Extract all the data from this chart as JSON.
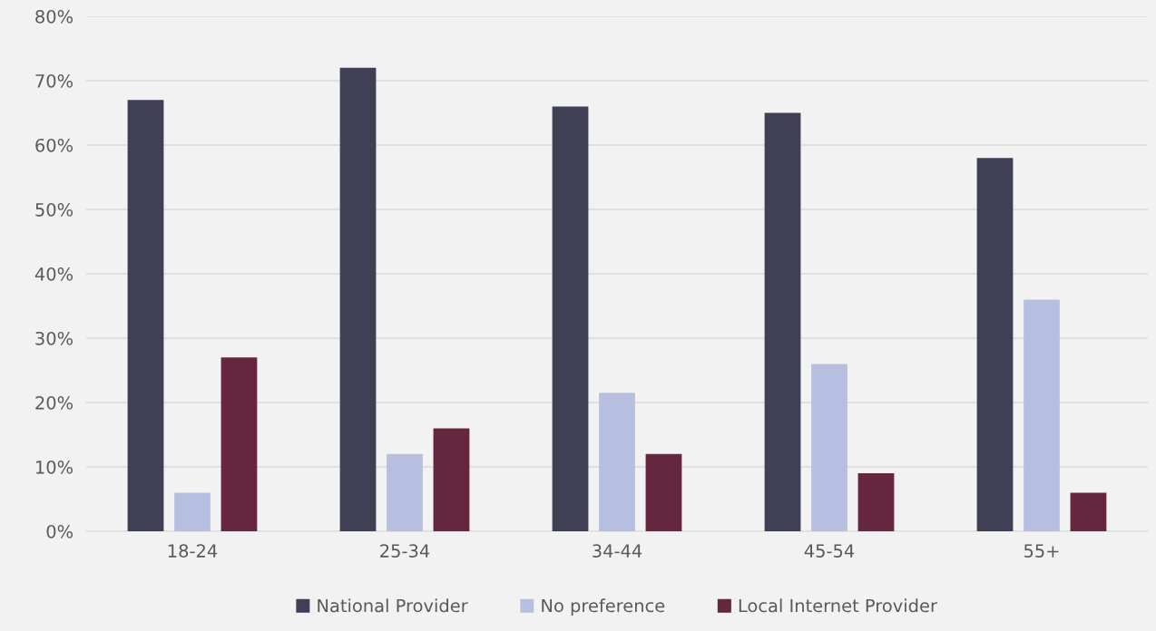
{
  "chart_data": {
    "type": "bar",
    "categories": [
      "18-24",
      "25-34",
      "34-44",
      "45-54",
      "55+"
    ],
    "series": [
      {
        "name": "National Provider",
        "color": "#3f3f55",
        "values": [
          67,
          72,
          66,
          65,
          58
        ]
      },
      {
        "name": "No preference",
        "color": "#b7bfe0",
        "values": [
          6,
          12,
          21.5,
          26,
          36
        ]
      },
      {
        "name": "Local Internet Provider",
        "color": "#65263f",
        "values": [
          27,
          16,
          12,
          9,
          6
        ]
      }
    ],
    "ylim": [
      0,
      80
    ],
    "yticks": [
      {
        "value": 0,
        "label": "0%"
      },
      {
        "value": 10,
        "label": "10%"
      },
      {
        "value": 20,
        "label": "20%"
      },
      {
        "value": 30,
        "label": "30%"
      },
      {
        "value": 40,
        "label": "40%"
      },
      {
        "value": 50,
        "label": "50%"
      },
      {
        "value": 60,
        "label": "60%"
      },
      {
        "value": 70,
        "label": "70%"
      },
      {
        "value": 80,
        "label": "80%"
      }
    ],
    "grid": "y",
    "legend": "bottom"
  }
}
